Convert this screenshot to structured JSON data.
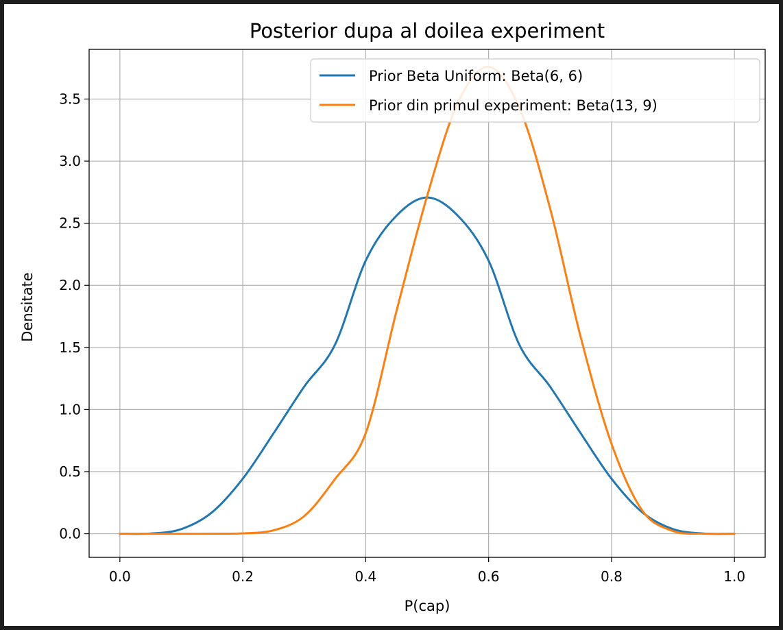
{
  "chart_data": {
    "type": "line",
    "title": "Posterior dupa al doilea experiment",
    "xlabel": "P(cap)",
    "ylabel": "Densitate",
    "xlim": [
      -0.05,
      1.05
    ],
    "ylim": [
      -0.19,
      3.9
    ],
    "x_ticks": [
      "0.0",
      "0.2",
      "0.4",
      "0.6",
      "0.8",
      "1.0"
    ],
    "x_tick_values": [
      0.0,
      0.2,
      0.4,
      0.6,
      0.8,
      1.0
    ],
    "y_ticks": [
      "0.0",
      "0.5",
      "1.0",
      "1.5",
      "2.0",
      "2.5",
      "3.0",
      "3.5"
    ],
    "y_tick_values": [
      0.0,
      0.5,
      1.0,
      1.5,
      2.0,
      2.5,
      3.0,
      3.5
    ],
    "grid": true,
    "legend_position": "upper right",
    "x": [
      0.0,
      0.05,
      0.1,
      0.15,
      0.2,
      0.25,
      0.3,
      0.35,
      0.4,
      0.45,
      0.5,
      0.55,
      0.6,
      0.65,
      0.7,
      0.75,
      0.8,
      0.85,
      0.9,
      0.95,
      1.0
    ],
    "series": [
      {
        "name": "Prior Beta Uniform: Beta(6, 6)",
        "color": "#1f77b4",
        "distribution": "Beta(6, 6)",
        "values": [
          0.0,
          0.0017,
          0.0374,
          0.1725,
          0.443,
          0.8078,
          1.1848,
          1.5216,
          2.1985,
          2.5601,
          2.707,
          2.5601,
          2.1985,
          1.5216,
          1.1848,
          0.8078,
          0.443,
          0.1725,
          0.0374,
          0.0017,
          0.0
        ]
      },
      {
        "name": "Prior din primul experiment: Beta(13, 9)",
        "color": "#ff7f0e",
        "distribution": "Beta(13, 9)",
        "values": [
          0.0,
          0.0,
          0.0,
          0.0002,
          0.0032,
          0.0275,
          0.142,
          0.44,
          0.81,
          1.79,
          2.72,
          3.47,
          3.76,
          3.43,
          2.62,
          1.58,
          0.724,
          0.187,
          0.0217,
          0.0003,
          0.0
        ]
      }
    ]
  }
}
